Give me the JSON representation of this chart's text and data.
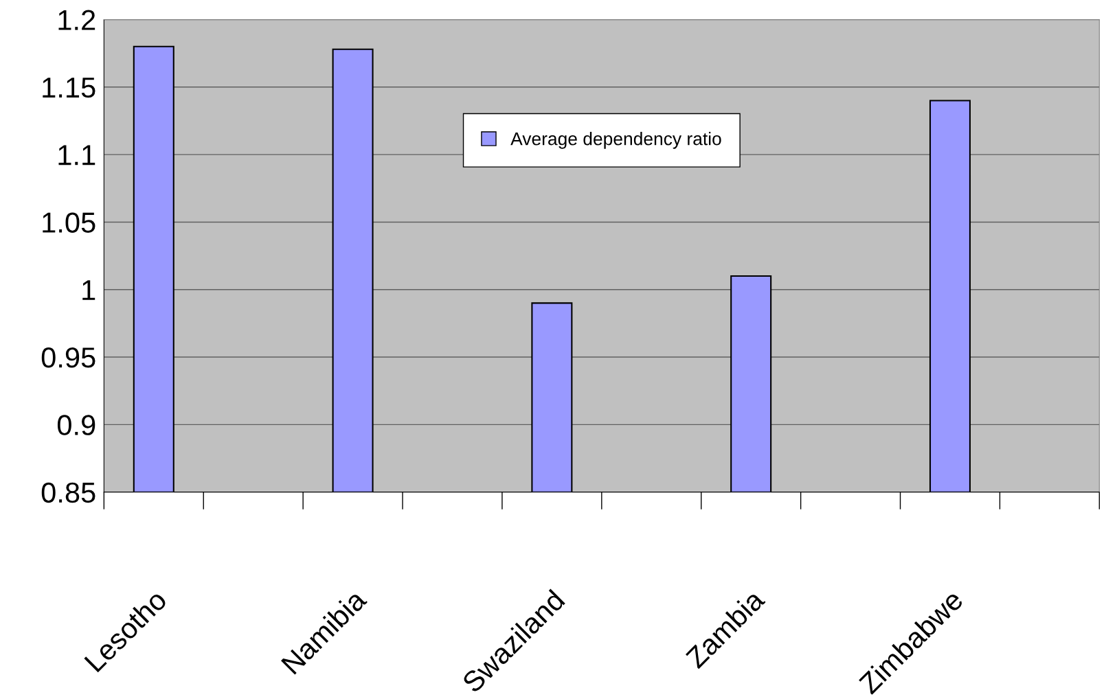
{
  "chart_data": {
    "type": "bar",
    "categories": [
      "Lesotho",
      null,
      "Namibia",
      null,
      "Swaziland",
      null,
      "Zambia",
      null,
      "Zimbabwe",
      null
    ],
    "series": [
      {
        "name": "Average dependency ratio",
        "color": "#9999ff",
        "values": [
          1.18,
          null,
          1.178,
          null,
          0.99,
          null,
          1.01,
          null,
          1.14,
          null
        ]
      }
    ],
    "ylim": [
      0.85,
      1.2
    ],
    "yticks": [
      0.85,
      0.9,
      0.95,
      1,
      1.05,
      1.1,
      1.15,
      1.2
    ],
    "grid": "y",
    "legend": "top"
  }
}
